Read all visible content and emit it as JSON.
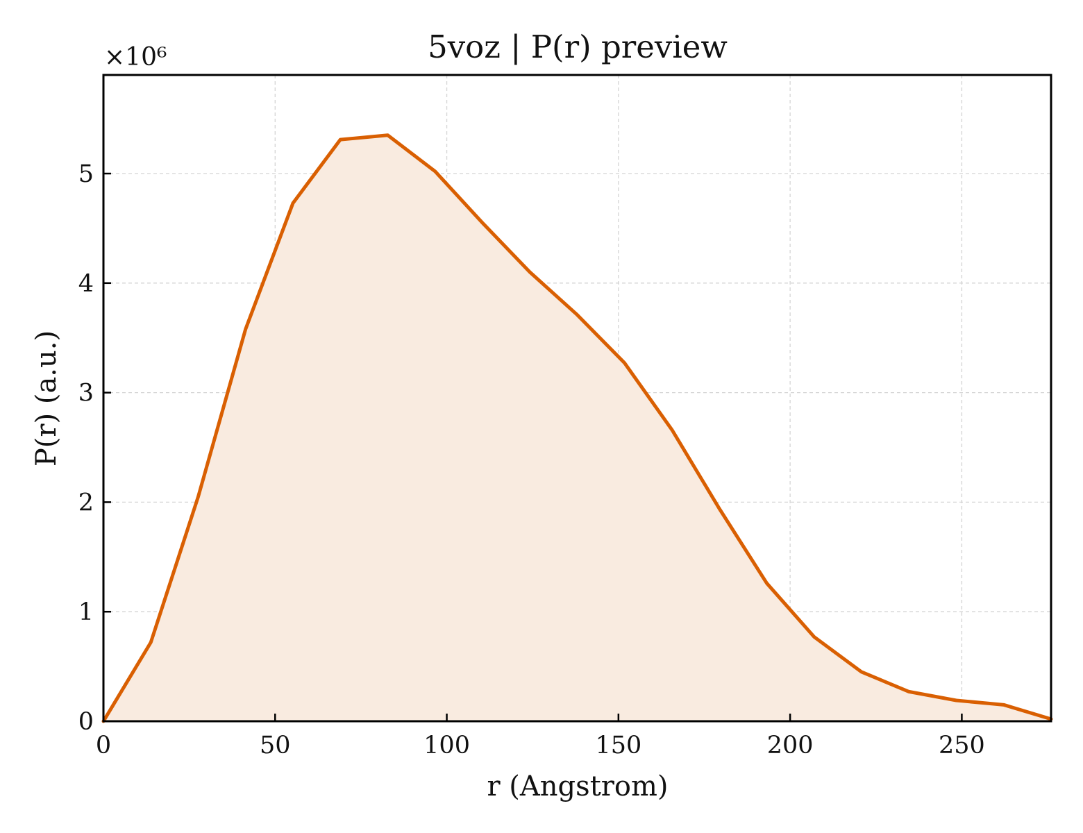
{
  "chart_data": {
    "type": "area",
    "title": "5voz | P(r) preview",
    "xlabel": "r (Angstrom)",
    "ylabel": "P(r) (a.u.)",
    "y_multiplier_label": "×10⁶",
    "xlim": [
      0,
      276
    ],
    "ylim": [
      0,
      5.9
    ],
    "y_scale_factor": 1000000,
    "xticks": [
      0,
      50,
      100,
      150,
      200,
      250
    ],
    "yticks": [
      0,
      1,
      2,
      3,
      4,
      5
    ],
    "grid": true,
    "line_color": "#d95f02",
    "fill_color": "#f9ebe0",
    "series": [
      {
        "x": [
          0,
          13.8,
          27.6,
          41.4,
          55.2,
          69.0,
          82.8,
          96.6,
          110.4,
          124.2,
          138.0,
          151.8,
          165.6,
          179.4,
          193.2,
          207.0,
          220.8,
          234.6,
          248.4,
          262.2,
          276.0
        ],
        "y": [
          0,
          0.72,
          2.05,
          3.58,
          4.73,
          5.31,
          5.35,
          5.02,
          4.55,
          4.1,
          3.71,
          3.27,
          2.66,
          1.94,
          1.26,
          0.77,
          0.45,
          0.27,
          0.19,
          0.15,
          0.02
        ]
      }
    ]
  }
}
